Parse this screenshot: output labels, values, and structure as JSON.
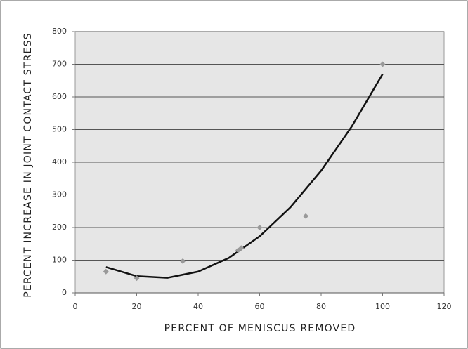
{
  "chart_data": {
    "type": "scatter",
    "x_label": "PERCENT OF MENISCUS REMOVED",
    "y_label": "PERCENT INCREASE IN JOINT CONTACT STRESS",
    "x": [
      10,
      20,
      35,
      53,
      54,
      60,
      75,
      100
    ],
    "values": [
      65,
      45,
      97,
      130,
      137,
      200,
      235,
      700
    ],
    "color": "#999999",
    "trendline": {
      "x": [
        10,
        20,
        30,
        40,
        50,
        60,
        70,
        80,
        90,
        100
      ],
      "values": [
        79,
        51,
        46,
        65,
        107,
        173,
        262,
        374,
        510,
        670
      ],
      "color": "#111111"
    },
    "xlim": [
      0,
      120
    ],
    "xticks": [
      0,
      20,
      40,
      60,
      80,
      100,
      120
    ],
    "ylim": [
      0,
      800
    ],
    "yticks": [
      0,
      100,
      200,
      300,
      400,
      500,
      600,
      700,
      800
    ],
    "grid": true
  }
}
